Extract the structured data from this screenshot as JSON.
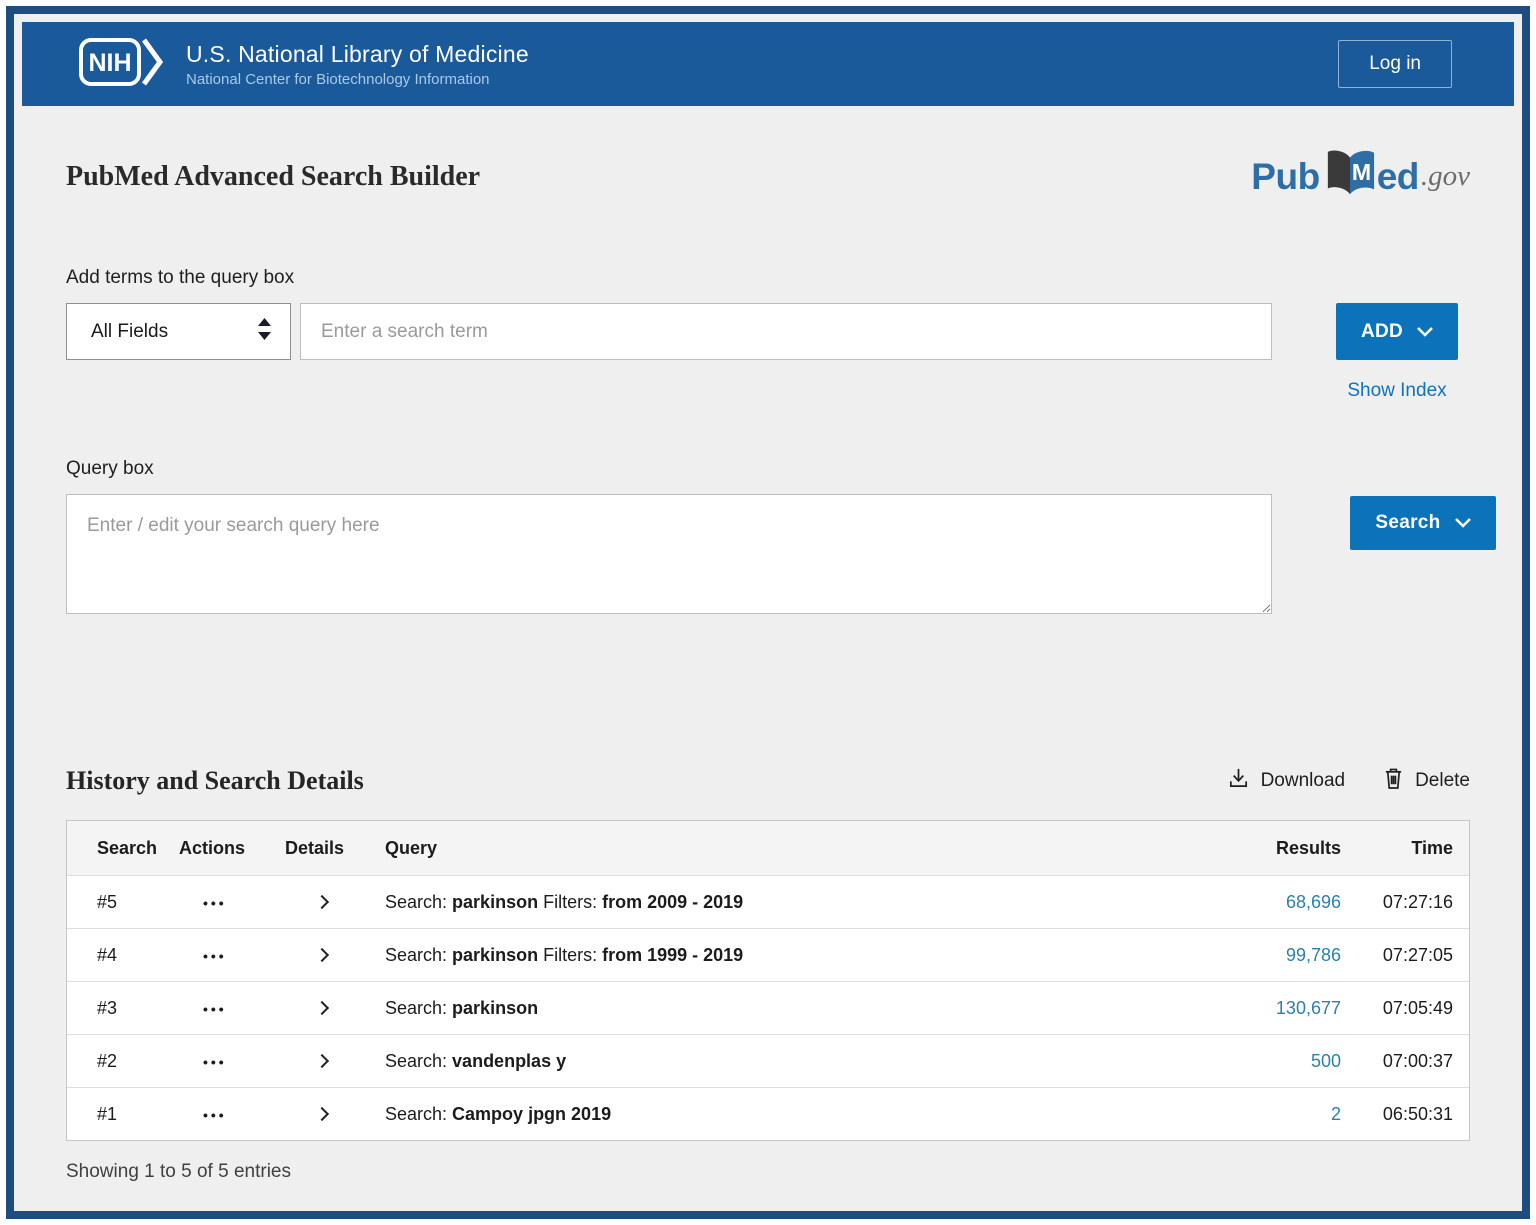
{
  "header": {
    "logo_text": "NIH",
    "title": "U.S. National Library of Medicine",
    "subtitle": "National Center for Biotechnology Information",
    "login_label": "Log in"
  },
  "brand": {
    "pub": "Pub",
    "book_letter": "M",
    "ed": "ed",
    "gov": ".gov"
  },
  "builder": {
    "title": "PubMed Advanced Search Builder",
    "add_terms_label": "Add terms to the query box",
    "field_select_value": "All Fields",
    "term_placeholder": "Enter a search term",
    "add_button_label": "ADD",
    "show_index_label": "Show Index",
    "query_box_label": "Query box",
    "query_placeholder": "Enter / edit your search query here",
    "search_button_label": "Search"
  },
  "history": {
    "title": "History and Search Details",
    "download_label": "Download",
    "delete_label": "Delete",
    "columns": {
      "search": "Search",
      "actions": "Actions",
      "details": "Details",
      "query": "Query",
      "results": "Results",
      "time": "Time"
    },
    "rows": [
      {
        "search": "#5",
        "q_prefix": "Search: ",
        "q_term": "parkinson",
        "q_filters_label": " Filters: ",
        "q_filters_value": "from 2009 - 2019",
        "results": "68,696",
        "time": "07:27:16"
      },
      {
        "search": "#4",
        "q_prefix": "Search: ",
        "q_term": "parkinson",
        "q_filters_label": " Filters: ",
        "q_filters_value": "from 1999 - 2019",
        "results": "99,786",
        "time": "07:27:05"
      },
      {
        "search": "#3",
        "q_prefix": "Search: ",
        "q_term": "parkinson",
        "q_filters_label": "",
        "q_filters_value": "",
        "results": "130,677",
        "time": "07:05:49"
      },
      {
        "search": "#2",
        "q_prefix": "Search: ",
        "q_term": "vandenplas y",
        "q_filters_label": "",
        "q_filters_value": "",
        "results": "500",
        "time": "07:00:37"
      },
      {
        "search": "#1",
        "q_prefix": "Search: ",
        "q_term": "Campoy jpgn 2019",
        "q_filters_label": "",
        "q_filters_value": "",
        "results": "2",
        "time": "06:50:31"
      }
    ],
    "footer": "Showing 1 to 5 of 5 entries"
  },
  "icons": {
    "ellipsis": "•••"
  },
  "colors": {
    "frame": "#1e4e7f",
    "header_bg": "#1a5a9a",
    "button_blue": "#0c73bb",
    "link_blue": "#0f73bb",
    "results_teal": "#2b80ad",
    "page_bg": "#efefef"
  }
}
